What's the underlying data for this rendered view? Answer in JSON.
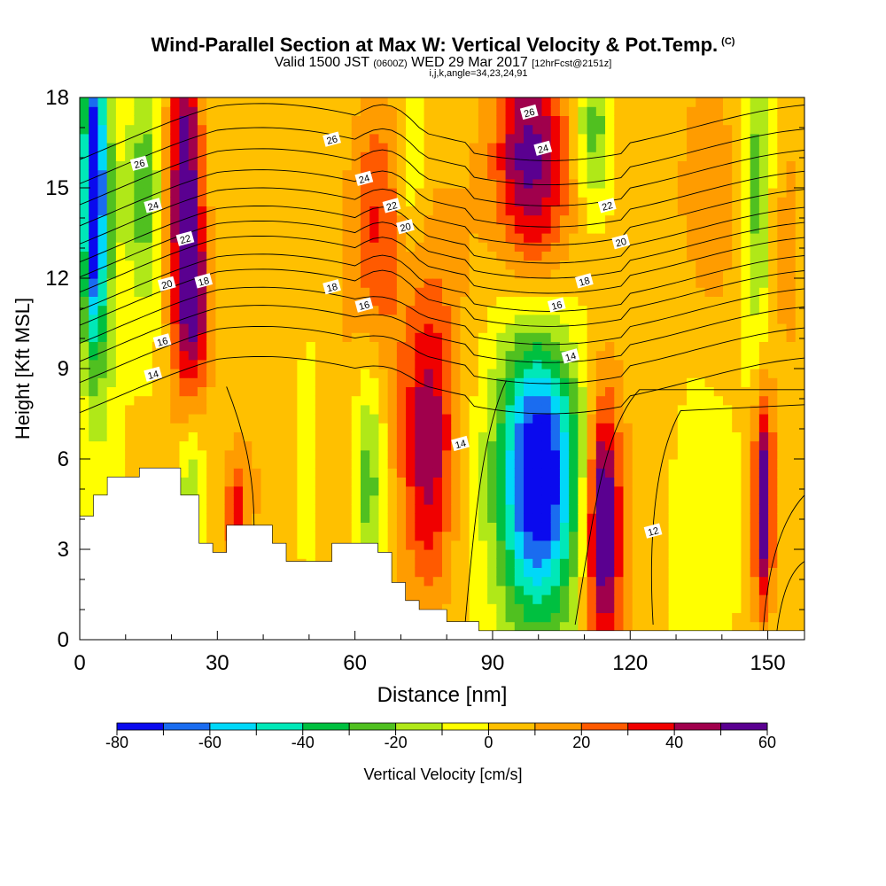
{
  "header": {
    "title": "Wind-Parallel Section at Max W: Vertical Velocity & Pot.Temp.",
    "copyright": "(C)",
    "subtitle_main": "Valid 1500 JST",
    "subtitle_utc": "(0600Z)",
    "subtitle_date": "WED 29 Mar 2017",
    "subtitle_fcst": "[12hrFcst@2151z]",
    "subtitle_indices": "i,j,k,angle=34,23,24,91"
  },
  "chart_data": {
    "type": "heatmap",
    "title": "Wind-Parallel Section at Max W: Vertical Velocity & Pot.Temp.",
    "xlabel": "Distance [nm]",
    "ylabel": "Height [Kft MSL]",
    "xlim": [
      0,
      158
    ],
    "ylim": [
      0,
      18
    ],
    "x_ticks": [
      0,
      30,
      60,
      90,
      120,
      150
    ],
    "y_ticks": [
      0,
      3,
      6,
      9,
      12,
      15,
      18
    ],
    "colorbar": {
      "label": "Vertical Velocity [cm/s]",
      "ticks": [
        -80,
        -60,
        -40,
        -20,
        0,
        20,
        40,
        60
      ],
      "levels": [
        -80,
        -70,
        -60,
        -50,
        -40,
        -30,
        -20,
        -10,
        0,
        10,
        20,
        30,
        40,
        50,
        60
      ],
      "colors": [
        "#0a0aee",
        "#1a6cf0",
        "#00d8f8",
        "#00e8b8",
        "#00c040",
        "#50c020",
        "#b0e818",
        "#ffff00",
        "#ffc000",
        "#ff9c00",
        "#ff5a00",
        "#f00000",
        "#a0004c",
        "#5a0090"
      ]
    },
    "velocity_cells": [
      {
        "x": 3,
        "y": 15,
        "w": -70,
        "sx": 1.5,
        "sy": 3
      },
      {
        "x": 4,
        "y": 14,
        "w": -35,
        "sx": 3,
        "sy": 5
      },
      {
        "x": 14,
        "y": 15,
        "w": -28,
        "sx": 2.5,
        "sy": 3
      },
      {
        "x": 23,
        "y": 14.5,
        "w": 60,
        "sx": 2.5,
        "sy": 4.5
      },
      {
        "x": 26,
        "y": 11,
        "w": 30,
        "sx": 2,
        "sy": 2
      },
      {
        "x": 24,
        "y": 5,
        "w": -25,
        "sx": 2,
        "sy": 2
      },
      {
        "x": 34,
        "y": 4.2,
        "w": 30,
        "sx": 1.5,
        "sy": 1.2
      },
      {
        "x": 38,
        "y": 5,
        "w": 8,
        "sx": 5,
        "sy": 3
      },
      {
        "x": 50,
        "y": 6,
        "w": -8,
        "sx": 2,
        "sy": 3
      },
      {
        "x": 62,
        "y": 8,
        "w": 10,
        "sx": 6,
        "sy": 5
      },
      {
        "x": 65,
        "y": 14,
        "w": 25,
        "sx": 4,
        "sy": 3
      },
      {
        "x": 72,
        "y": 16,
        "w": -18,
        "sx": 2,
        "sy": 2
      },
      {
        "x": 63,
        "y": 5.5,
        "w": -35,
        "sx": 2.5,
        "sy": 3
      },
      {
        "x": 76,
        "y": 6.5,
        "w": 45,
        "sx": 4,
        "sy": 3.5
      },
      {
        "x": 82,
        "y": 13,
        "w": 8,
        "sx": 6,
        "sy": 4
      },
      {
        "x": 97,
        "y": 16,
        "w": 40,
        "sx": 5,
        "sy": 2.5
      },
      {
        "x": 102,
        "y": 15,
        "w": 20,
        "sx": 6,
        "sy": 4
      },
      {
        "x": 100,
        "y": 5.5,
        "w": -62,
        "sx": 5.5,
        "sy": 3
      },
      {
        "x": 100,
        "y": 5.5,
        "w": -30,
        "sx": 8,
        "sy": 4.5
      },
      {
        "x": 112,
        "y": 17,
        "w": -30,
        "sx": 3,
        "sy": 2
      },
      {
        "x": 114,
        "y": 4,
        "w": 52,
        "sx": 2.5,
        "sy": 3
      },
      {
        "x": 115,
        "y": 3,
        "w": 18,
        "sx": 4,
        "sy": 3.5
      },
      {
        "x": 126,
        "y": 14,
        "w": 8,
        "sx": 7,
        "sy": 5
      },
      {
        "x": 136,
        "y": 6,
        "w": -10,
        "sx": 5,
        "sy": 5
      },
      {
        "x": 138,
        "y": 14,
        "w": 15,
        "sx": 4,
        "sy": 4
      },
      {
        "x": 148,
        "y": 15,
        "w": -30,
        "sx": 2,
        "sy": 4
      },
      {
        "x": 149,
        "y": 4.5,
        "w": 62,
        "sx": 1.5,
        "sy": 2.5
      },
      {
        "x": 154,
        "y": 13,
        "w": 10,
        "sx": 4,
        "sy": 5
      }
    ],
    "potential_temperature_labels": [
      {
        "text": "26",
        "x": 13,
        "y": 15.8
      },
      {
        "text": "24",
        "x": 16,
        "y": 14.4
      },
      {
        "text": "22",
        "x": 23,
        "y": 13.3
      },
      {
        "text": "20",
        "x": 19,
        "y": 11.8
      },
      {
        "text": "18",
        "x": 27,
        "y": 11.9
      },
      {
        "text": "16",
        "x": 18,
        "y": 9.9
      },
      {
        "text": "14",
        "x": 16,
        "y": 8.8
      },
      {
        "text": "26",
        "x": 55,
        "y": 16.6
      },
      {
        "text": "24",
        "x": 62,
        "y": 15.3
      },
      {
        "text": "22",
        "x": 68,
        "y": 14.4
      },
      {
        "text": "20",
        "x": 71,
        "y": 13.7
      },
      {
        "text": "18",
        "x": 55,
        "y": 11.7
      },
      {
        "text": "16",
        "x": 62,
        "y": 11.1
      },
      {
        "text": "26",
        "x": 98,
        "y": 17.5
      },
      {
        "text": "24",
        "x": 101,
        "y": 16.3
      },
      {
        "text": "22",
        "x": 115,
        "y": 14.4
      },
      {
        "text": "20",
        "x": 118,
        "y": 13.2
      },
      {
        "text": "18",
        "x": 110,
        "y": 11.9
      },
      {
        "text": "16",
        "x": 104,
        "y": 11.1
      },
      {
        "text": "14",
        "x": 107,
        "y": 9.4
      },
      {
        "text": "14",
        "x": 83,
        "y": 6.5
      },
      {
        "text": "12",
        "x": 125,
        "y": 3.6
      }
    ],
    "terrain": [
      [
        0,
        4.1
      ],
      [
        3,
        4.1
      ],
      [
        3,
        4.8
      ],
      [
        6,
        4.8
      ],
      [
        6,
        5.4
      ],
      [
        13,
        5.4
      ],
      [
        13,
        5.7
      ],
      [
        22,
        5.7
      ],
      [
        22,
        4.8
      ],
      [
        26,
        4.8
      ],
      [
        26,
        3.2
      ],
      [
        29,
        3.2
      ],
      [
        29,
        2.9
      ],
      [
        32,
        2.9
      ],
      [
        32,
        3.8
      ],
      [
        42,
        3.8
      ],
      [
        42,
        3.2
      ],
      [
        45,
        3.2
      ],
      [
        45,
        2.6
      ],
      [
        55,
        2.6
      ],
      [
        55,
        3.2
      ],
      [
        65,
        3.2
      ],
      [
        65,
        2.9
      ],
      [
        68,
        2.9
      ],
      [
        68,
        1.9
      ],
      [
        71,
        1.9
      ],
      [
        71,
        1.3
      ],
      [
        74,
        1.3
      ],
      [
        74,
        1.0
      ],
      [
        80,
        1.0
      ],
      [
        80,
        0.6
      ],
      [
        87,
        0.6
      ],
      [
        87,
        0.3
      ],
      [
        158,
        0.3
      ],
      [
        158,
        0
      ]
    ]
  }
}
